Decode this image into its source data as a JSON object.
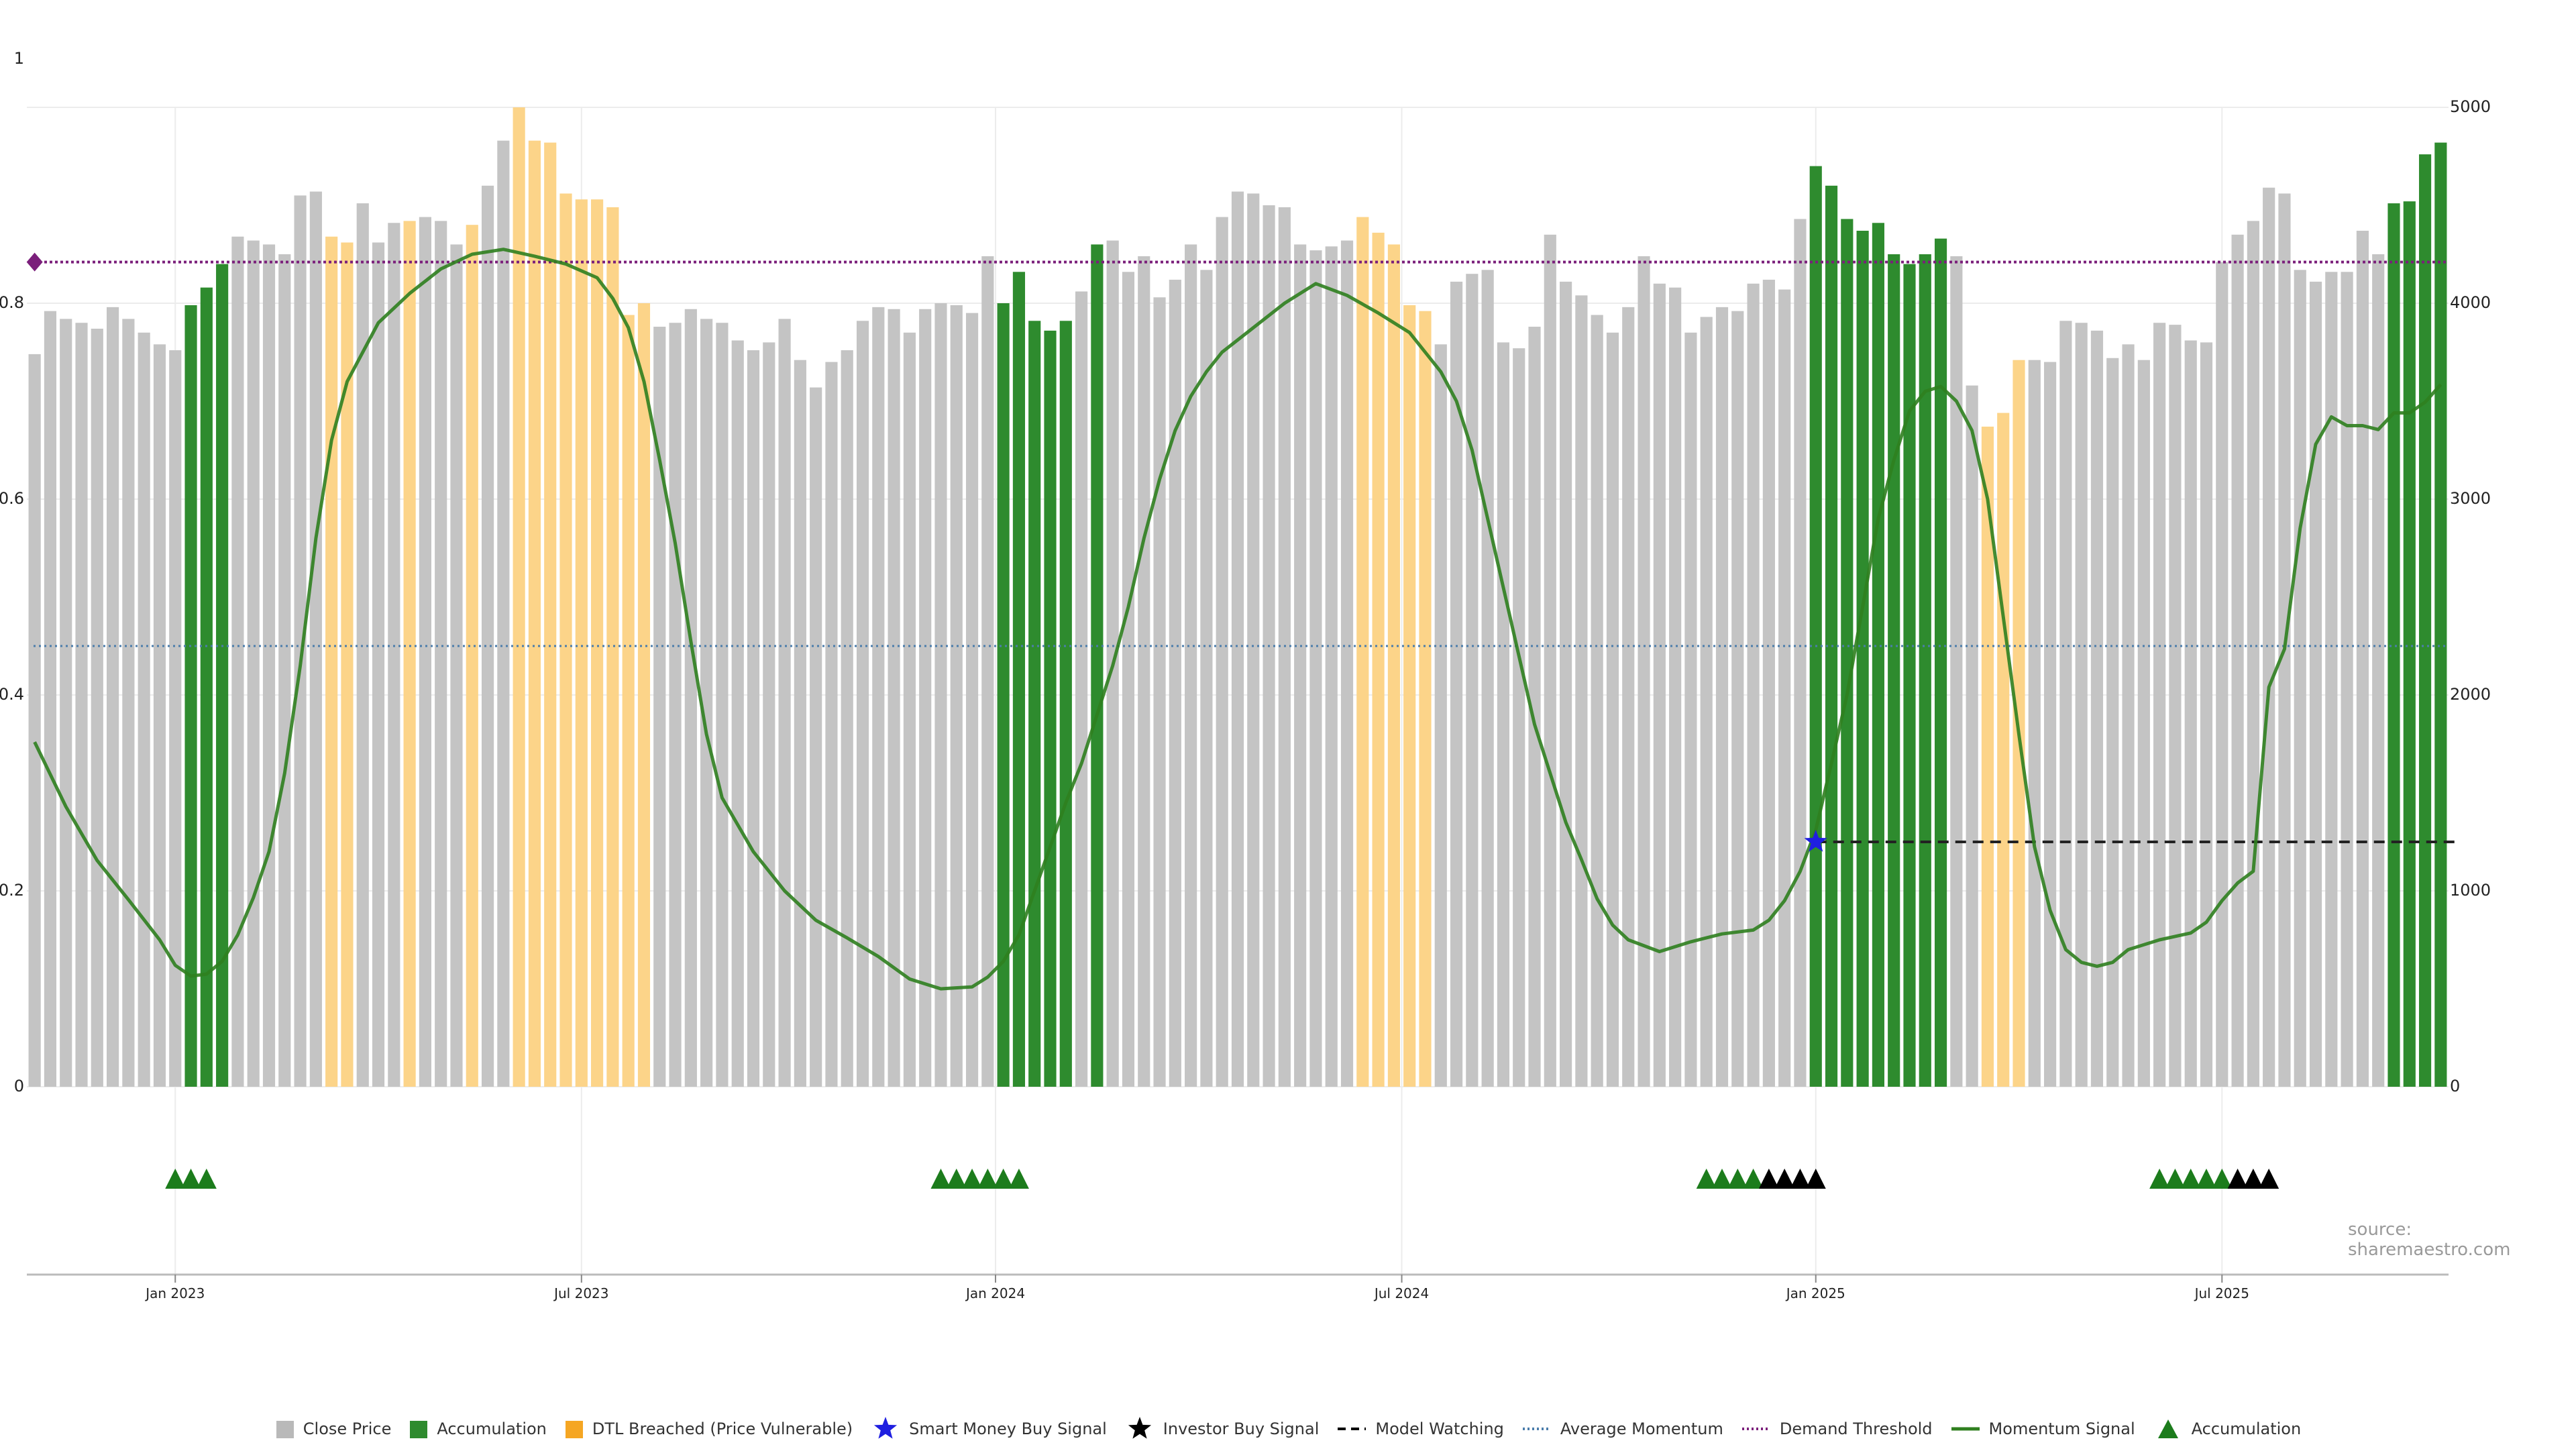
{
  "chart_data": {
    "type": "bar",
    "source": "source: sharemaestro.com",
    "left_axis": {
      "range": [
        0,
        1
      ],
      "ticks": [
        "0",
        "0.2",
        "0.4",
        "0.6",
        "0.8",
        "1"
      ]
    },
    "right_axis": {
      "range": [
        0,
        5000
      ],
      "ticks": [
        "0",
        "1000",
        "2000",
        "3000",
        "4000",
        "5000"
      ]
    },
    "x_ticks": [
      {
        "label": "Jan 2023",
        "week": 9
      },
      {
        "label": "Jul 2023",
        "week": 35
      },
      {
        "label": "Jan 2024",
        "week": 61.5
      },
      {
        "label": "Jul 2024",
        "week": 87.5
      },
      {
        "label": "Jan 2025",
        "week": 114
      },
      {
        "label": "Jul 2025",
        "week": 140
      }
    ],
    "bar_colors": {
      "grey": "#c4c4c4",
      "green": "#2e8b2e",
      "orange": "#fcd489"
    },
    "close_price": [
      3740,
      3960,
      3920,
      3900,
      3870,
      3980,
      3920,
      3850,
      3790,
      3760,
      3990,
      4080,
      4200,
      4340,
      4320,
      4300,
      4250,
      4550,
      4570,
      4340,
      4310,
      4510,
      4310,
      4410,
      4420,
      4440,
      4420,
      4300,
      4400,
      4600,
      4830,
      5000,
      4830,
      4820,
      4560,
      4530,
      4530,
      4490,
      3940,
      4000,
      3880,
      3900,
      3970,
      3920,
      3900,
      3810,
      3760,
      3800,
      3920,
      3710,
      3570,
      3700,
      3760,
      3910,
      3980,
      3970,
      3850,
      3970,
      4000,
      3990,
      3950,
      4240,
      4000,
      4160,
      3910,
      3860,
      3910,
      4060,
      4300,
      4320,
      4160,
      4240,
      4030,
      4120,
      4300,
      4170,
      4440,
      4570,
      4560,
      4500,
      4490,
      4300,
      4270,
      4290,
      4320,
      4440,
      4360,
      4300,
      3990,
      3960,
      3790,
      4110,
      4150,
      4170,
      3800,
      3770,
      3880,
      4350,
      4110,
      4040,
      3940,
      3850,
      3980,
      4240,
      4100,
      4080,
      3850,
      3930,
      3980,
      3960,
      4100,
      4120,
      4070,
      4430,
      4700,
      4600,
      4430,
      4370,
      4410,
      4250,
      4200,
      4250,
      4330,
      4240,
      3580,
      3370,
      3440,
      3710,
      3710,
      3700,
      3910,
      3900,
      3860,
      3720,
      3790,
      3710,
      3900,
      3890,
      3810,
      3800,
      4210,
      4350,
      4420,
      4590,
      4560,
      4170,
      4110,
      4160,
      4160,
      4370,
      4250,
      4510,
      4520,
      4760,
      4820
    ],
    "bar_category": "ggggggggggaaaggggggoogggogggoggoooooooooggggggggggggggggggggggaaaaagaggggggggggggggggoooooggggggggggggggggggggggggaaaaaaaaaggooogggggggggggggggggggggggaaaaaaaggoooggggggoooo",
    "momentum_signal": [
      [
        0,
        0.352
      ],
      [
        2,
        0.286
      ],
      [
        4,
        0.231
      ],
      [
        6,
        0.191
      ],
      [
        8,
        0.15
      ],
      [
        9,
        0.124
      ],
      [
        10,
        0.113
      ],
      [
        11,
        0.115
      ],
      [
        12,
        0.128
      ],
      [
        13,
        0.155
      ],
      [
        14,
        0.193
      ],
      [
        15,
        0.24
      ],
      [
        16,
        0.32
      ],
      [
        17,
        0.43
      ],
      [
        18,
        0.56
      ],
      [
        19,
        0.66
      ],
      [
        20,
        0.72
      ],
      [
        22,
        0.78
      ],
      [
        24,
        0.81
      ],
      [
        26,
        0.835
      ],
      [
        28,
        0.85
      ],
      [
        30,
        0.855
      ],
      [
        32,
        0.848
      ],
      [
        34,
        0.84
      ],
      [
        36,
        0.826
      ],
      [
        37,
        0.805
      ],
      [
        38,
        0.775
      ],
      [
        39,
        0.72
      ],
      [
        40,
        0.64
      ],
      [
        41,
        0.555
      ],
      [
        42,
        0.455
      ],
      [
        43,
        0.36
      ],
      [
        44,
        0.295
      ],
      [
        46,
        0.24
      ],
      [
        48,
        0.2
      ],
      [
        50,
        0.17
      ],
      [
        52,
        0.152
      ],
      [
        54,
        0.133
      ],
      [
        56,
        0.11
      ],
      [
        58,
        0.1
      ],
      [
        60,
        0.102
      ],
      [
        61,
        0.112
      ],
      [
        62,
        0.128
      ],
      [
        63,
        0.155
      ],
      [
        64,
        0.2
      ],
      [
        65,
        0.245
      ],
      [
        66,
        0.29
      ],
      [
        67,
        0.33
      ],
      [
        68,
        0.38
      ],
      [
        69,
        0.43
      ],
      [
        70,
        0.49
      ],
      [
        71,
        0.56
      ],
      [
        72,
        0.62
      ],
      [
        73,
        0.67
      ],
      [
        74,
        0.705
      ],
      [
        75,
        0.73
      ],
      [
        76,
        0.75
      ],
      [
        78,
        0.775
      ],
      [
        80,
        0.8
      ],
      [
        82,
        0.82
      ],
      [
        84,
        0.808
      ],
      [
        86,
        0.79
      ],
      [
        88,
        0.77
      ],
      [
        89,
        0.75
      ],
      [
        90,
        0.73
      ],
      [
        91,
        0.7
      ],
      [
        92,
        0.65
      ],
      [
        93,
        0.58
      ],
      [
        94,
        0.51
      ],
      [
        95,
        0.44
      ],
      [
        96,
        0.37
      ],
      [
        97,
        0.32
      ],
      [
        98,
        0.27
      ],
      [
        99,
        0.232
      ],
      [
        100,
        0.192
      ],
      [
        101,
        0.165
      ],
      [
        102,
        0.15
      ],
      [
        104,
        0.138
      ],
      [
        106,
        0.148
      ],
      [
        108,
        0.156
      ],
      [
        110,
        0.16
      ],
      [
        111,
        0.17
      ],
      [
        112,
        0.19
      ],
      [
        113,
        0.22
      ],
      [
        114,
        0.262
      ],
      [
        115,
        0.33
      ],
      [
        116,
        0.4
      ],
      [
        117,
        0.49
      ],
      [
        118,
        0.58
      ],
      [
        119,
        0.64
      ],
      [
        120,
        0.69
      ],
      [
        121,
        0.71
      ],
      [
        122,
        0.715
      ],
      [
        123,
        0.7
      ],
      [
        124,
        0.67
      ],
      [
        125,
        0.6
      ],
      [
        126,
        0.48
      ],
      [
        127,
        0.36
      ],
      [
        128,
        0.245
      ],
      [
        129,
        0.18
      ],
      [
        130,
        0.14
      ],
      [
        131,
        0.127
      ],
      [
        132,
        0.123
      ],
      [
        133,
        0.127
      ],
      [
        134,
        0.14
      ],
      [
        136,
        0.15
      ],
      [
        138,
        0.157
      ],
      [
        139,
        0.168
      ],
      [
        140,
        0.19
      ],
      [
        141,
        0.208
      ],
      [
        142,
        0.22
      ],
      [
        143,
        0.408
      ],
      [
        144,
        0.447
      ],
      [
        145,
        0.57
      ],
      [
        146,
        0.656
      ],
      [
        147,
        0.684
      ],
      [
        148,
        0.675
      ],
      [
        149,
        0.675
      ],
      [
        150,
        0.671
      ],
      [
        151,
        0.688
      ],
      [
        152,
        0.688
      ],
      [
        153,
        0.699
      ],
      [
        154,
        0.717
      ]
    ],
    "average_momentum": 0.45,
    "demand_threshold": 0.842,
    "model_watching": {
      "level": 0.25,
      "from_week": 114,
      "to_week": 155
    },
    "smart_money_buy_signal": {
      "week": 114,
      "value": 0.25
    },
    "accumulation_markers": [
      9,
      10,
      11,
      58,
      59,
      60,
      61,
      62,
      63,
      107,
      108,
      109,
      110,
      111,
      112,
      113,
      114,
      136,
      137,
      138,
      139,
      140,
      141,
      142,
      143
    ],
    "investor_buy_weeks": [
      111,
      112,
      113,
      114,
      141,
      142,
      143
    ]
  },
  "legend": {
    "items": [
      {
        "label": "Close Price",
        "kind": "square",
        "color": "#b9b9b9"
      },
      {
        "label": "Accumulation",
        "kind": "square",
        "color": "#2e8b2e"
      },
      {
        "label": "DTL Breached (Price Vulnerable)",
        "kind": "square",
        "color": "#f5a623"
      },
      {
        "label": "Smart Money Buy Signal",
        "kind": "star",
        "color": "#1f1fe0"
      },
      {
        "label": "Investor Buy Signal",
        "kind": "star",
        "color": "#000000"
      },
      {
        "label": "Model Watching",
        "kind": "dash",
        "color": "#000000"
      },
      {
        "label": "Average Momentum",
        "kind": "dot",
        "color": "#4b7dab"
      },
      {
        "label": "Demand Threshold",
        "kind": "dot",
        "color": "#7b1f7b"
      },
      {
        "label": "Momentum Signal",
        "kind": "line",
        "color": "#2f7f1f"
      },
      {
        "label": "Accumulation",
        "kind": "triangle",
        "color": "#1c7c1c"
      }
    ]
  }
}
